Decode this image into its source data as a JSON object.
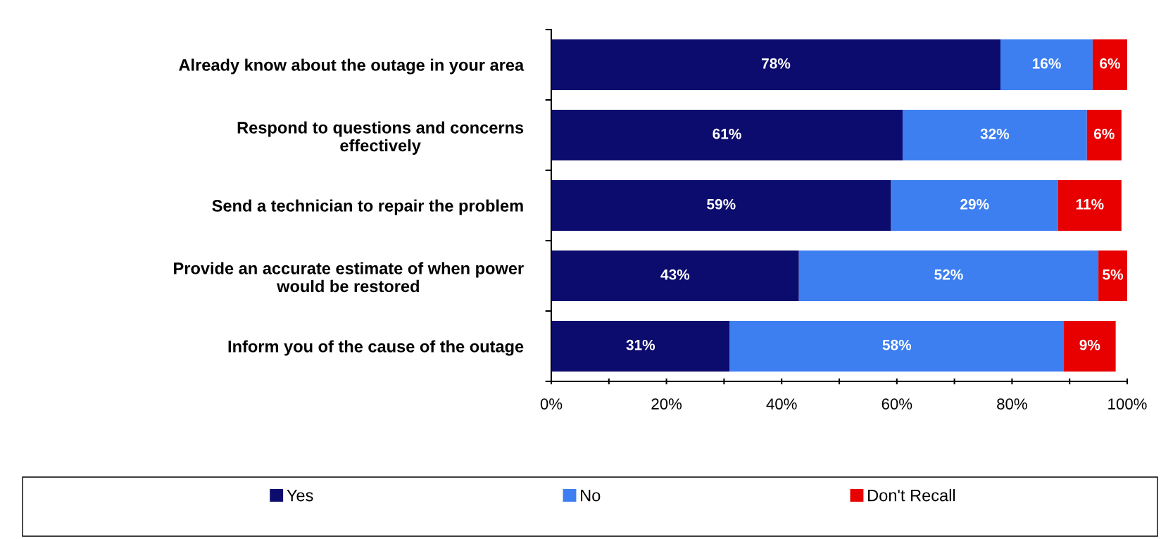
{
  "chart_data": {
    "type": "bar",
    "orientation": "horizontal",
    "stacked": true,
    "categories": [
      "Already know about the outage in your area",
      "Respond to questions and concerns\neffectively",
      "Send a technician to repair the problem",
      "Provide an accurate estimate of when power\nwould be restored",
      "Inform you of the cause of the outage"
    ],
    "series": [
      {
        "name": "Yes",
        "color": "#0c0c6e",
        "values": [
          78,
          61,
          59,
          43,
          31
        ],
        "value_labels": [
          "78%",
          "61%",
          "59%",
          "43%",
          "31%"
        ]
      },
      {
        "name": "No",
        "color": "#3d7ff0",
        "values": [
          16,
          32,
          29,
          52,
          58
        ],
        "value_labels": [
          "16%",
          "32%",
          "29%",
          "52%",
          "58%"
        ]
      },
      {
        "name": "Don't Recall",
        "color": "#e80000",
        "values": [
          6,
          6,
          11,
          5,
          9
        ],
        "value_labels": [
          "6%",
          "6%",
          "11%",
          "5%",
          "9%"
        ]
      }
    ],
    "xlim": [
      0,
      100
    ],
    "xticks": [
      {
        "value": 0,
        "label": "0%"
      },
      {
        "value": 10,
        "label": null
      },
      {
        "value": 20,
        "label": "20%"
      },
      {
        "value": 30,
        "label": null
      },
      {
        "value": 40,
        "label": "40%"
      },
      {
        "value": 50,
        "label": null
      },
      {
        "value": 60,
        "label": "60%"
      },
      {
        "value": 70,
        "label": null
      },
      {
        "value": 80,
        "label": "80%"
      },
      {
        "value": 90,
        "label": null
      },
      {
        "value": 100,
        "label": "100%"
      }
    ],
    "grid": false,
    "legend": "bottom"
  }
}
